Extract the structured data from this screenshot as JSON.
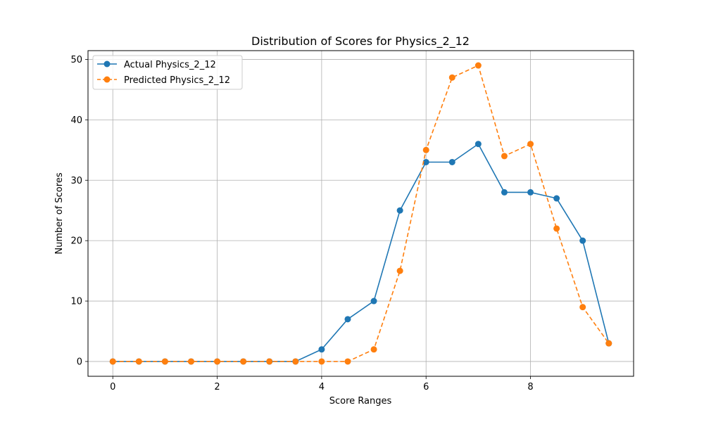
{
  "chart_data": {
    "type": "line",
    "title": "Distribution of Scores for Physics_2_12",
    "xlabel": "Score Ranges",
    "ylabel": "Number of Scores",
    "xlim": [
      -0.475,
      9.975
    ],
    "ylim": [
      -2.45,
      51.45
    ],
    "xticks": [
      0,
      2,
      4,
      6,
      8
    ],
    "yticks": [
      0,
      10,
      20,
      30,
      40,
      50
    ],
    "grid": true,
    "legend_position": "top-left",
    "x": [
      0,
      0.5,
      1,
      1.5,
      2,
      2.5,
      3,
      3.5,
      4,
      4.5,
      5,
      5.5,
      6,
      6.5,
      7,
      7.5,
      8,
      8.5,
      9,
      9.5
    ],
    "series": [
      {
        "name": "Actual Physics_2_12",
        "color": "#1f77b4",
        "line_style": "solid",
        "marker": "circle",
        "values": [
          0,
          0,
          0,
          0,
          0,
          0,
          0,
          0,
          2,
          7,
          10,
          25,
          33,
          33,
          36,
          28,
          28,
          27,
          20,
          3
        ]
      },
      {
        "name": "Predicted Physics_2_12",
        "color": "#ff7f0e",
        "line_style": "dashed",
        "marker": "circle",
        "values": [
          0,
          0,
          0,
          0,
          0,
          0,
          0,
          0,
          0,
          0,
          2,
          15,
          35,
          47,
          49,
          34,
          36,
          22,
          9,
          3
        ]
      }
    ]
  }
}
